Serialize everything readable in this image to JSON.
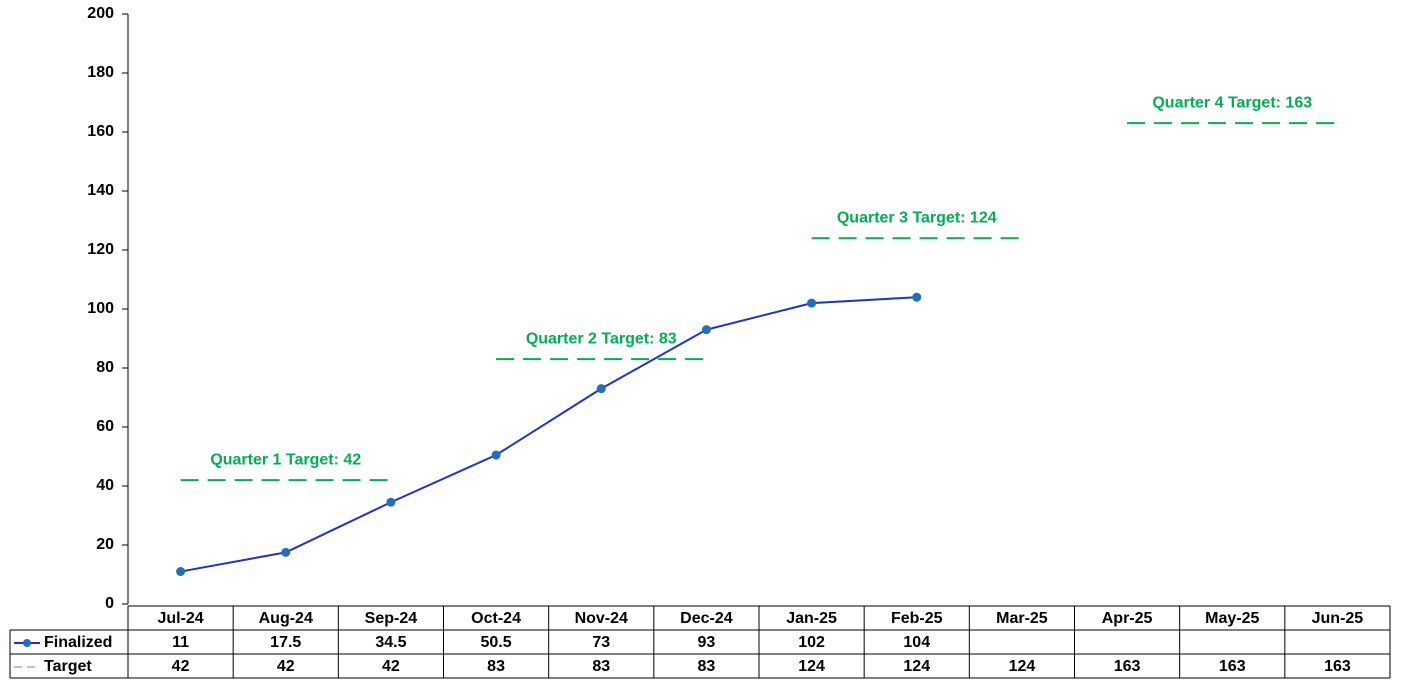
{
  "chart_data": {
    "type": "line",
    "categories": [
      "Jul-24",
      "Aug-24",
      "Sep-24",
      "Oct-24",
      "Nov-24",
      "Dec-24",
      "Jan-25",
      "Feb-25",
      "Mar-25",
      "Apr-25",
      "May-25",
      "Jun-25"
    ],
    "series": [
      {
        "name": "Finalized",
        "color": "#1f2fd6",
        "marker": "#1f6fbf",
        "values": [
          11,
          17.5,
          34.5,
          50.5,
          73,
          93,
          102,
          104,
          null,
          null,
          null,
          null
        ]
      },
      {
        "name": "Target",
        "color": "#00b050",
        "dashed": true,
        "values": [
          42,
          42,
          42,
          83,
          83,
          83,
          124,
          124,
          124,
          163,
          163,
          163
        ]
      }
    ],
    "annotations": [
      "Quarter 1 Target: 42",
      "Quarter 2 Target: 83",
      "Quarter 3 Target: 124",
      "Quarter 4 Target: 163"
    ],
    "ylim": [
      0,
      200
    ],
    "yticks": [
      0,
      20,
      40,
      60,
      80,
      100,
      120,
      140,
      160,
      180,
      200
    ],
    "grid": false,
    "data_table": true
  }
}
